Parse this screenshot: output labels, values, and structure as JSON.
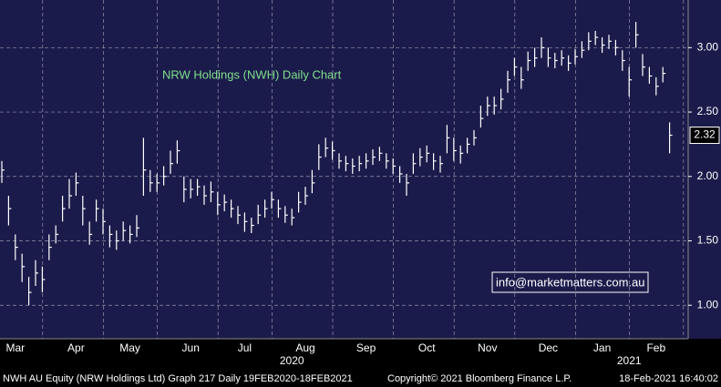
{
  "chart_data": {
    "type": "ohlc",
    "title": "NRW Holdings (NWH) Daily Chart",
    "watermark": "info@marketmatters.com.au",
    "footer_left": "NWH AU Equity (NRW Holdings Ltd) Graph 217  Daily 19FEB2020-18FEB2021",
    "footer_center": "Copyright© 2021 Bloomberg Finance L.P.",
    "footer_right": "18-Feb-2021 16:40:02",
    "color": "#ffffff",
    "grid": true,
    "categories": [
      null,
      null,
      "Mar",
      null,
      null,
      null,
      null,
      null,
      null,
      null,
      null,
      "Apr",
      null,
      null,
      null,
      null,
      null,
      null,
      null,
      "May",
      null,
      null,
      null,
      null,
      null,
      null,
      null,
      null,
      "Jun",
      null,
      null,
      null,
      null,
      null,
      null,
      null,
      "Jul",
      null,
      null,
      null,
      null,
      null,
      null,
      null,
      null,
      "Aug",
      null,
      null,
      null,
      null,
      null,
      null,
      null,
      null,
      "Sep",
      null,
      null,
      null,
      null,
      null,
      null,
      null,
      null,
      "Oct",
      null,
      null,
      null,
      null,
      null,
      null,
      null,
      null,
      "Nov",
      null,
      null,
      null,
      null,
      null,
      null,
      null,
      null,
      "Dec",
      null,
      null,
      null,
      null,
      null,
      null,
      null,
      "Jan",
      null,
      null,
      null,
      null,
      null,
      null,
      null,
      "Feb",
      null,
      null
    ],
    "years": [
      null,
      null,
      null,
      null,
      null,
      null,
      null,
      null,
      null,
      null,
      null,
      null,
      null,
      null,
      null,
      null,
      null,
      null,
      null,
      null,
      null,
      null,
      null,
      null,
      null,
      null,
      null,
      null,
      null,
      null,
      null,
      null,
      null,
      null,
      null,
      null,
      null,
      null,
      null,
      null,
      null,
      null,
      null,
      "2020",
      null,
      null,
      null,
      null,
      null,
      null,
      null,
      null,
      null,
      null,
      null,
      null,
      null,
      null,
      null,
      null,
      null,
      null,
      null,
      null,
      null,
      null,
      null,
      null,
      null,
      null,
      null,
      null,
      null,
      null,
      null,
      null,
      null,
      null,
      null,
      null,
      null,
      null,
      null,
      null,
      null,
      null,
      null,
      null,
      null,
      null,
      null,
      null,
      null,
      "2021",
      null,
      null,
      null,
      null,
      null,
      null
    ],
    "high": [
      2.12,
      1.85,
      1.55,
      1.4,
      1.22,
      1.35,
      1.3,
      1.55,
      1.62,
      1.85,
      1.98,
      2.03,
      1.85,
      1.65,
      1.82,
      1.75,
      1.62,
      1.58,
      1.65,
      1.62,
      1.7,
      2.3,
      2.05,
      2.02,
      2.08,
      2.2,
      2.28,
      2.0,
      1.98,
      1.98,
      1.93,
      1.96,
      1.88,
      1.86,
      1.82,
      1.77,
      1.72,
      1.68,
      1.78,
      1.82,
      1.88,
      1.82,
      1.77,
      1.75,
      1.88,
      1.92,
      2.05,
      2.25,
      2.3,
      2.27,
      2.18,
      2.16,
      2.14,
      2.16,
      2.18,
      2.21,
      2.23,
      2.18,
      2.14,
      2.08,
      2.02,
      2.18,
      2.22,
      2.24,
      2.18,
      2.16,
      2.4,
      2.3,
      2.24,
      2.3,
      2.36,
      2.55,
      2.62,
      2.62,
      2.68,
      2.82,
      2.92,
      2.85,
      2.97,
      3.0,
      3.08,
      3.0,
      2.96,
      2.98,
      2.94,
      2.99,
      3.05,
      3.12,
      3.13,
      3.08,
      3.1,
      3.06,
      2.98,
      2.85,
      3.2,
      2.95,
      2.85,
      2.77,
      2.85,
      2.42
    ],
    "low": [
      1.95,
      1.62,
      1.35,
      1.18,
      1.0,
      1.15,
      1.1,
      1.35,
      1.48,
      1.65,
      1.75,
      1.85,
      1.62,
      1.47,
      1.65,
      1.55,
      1.45,
      1.43,
      1.5,
      1.48,
      1.53,
      1.85,
      1.88,
      1.88,
      1.93,
      2.02,
      2.1,
      1.8,
      1.83,
      1.85,
      1.78,
      1.8,
      1.7,
      1.73,
      1.68,
      1.63,
      1.57,
      1.56,
      1.63,
      1.68,
      1.75,
      1.68,
      1.64,
      1.62,
      1.72,
      1.78,
      1.87,
      2.05,
      2.15,
      2.13,
      2.06,
      2.04,
      2.02,
      2.04,
      2.06,
      2.09,
      2.12,
      2.06,
      2.02,
      1.95,
      1.85,
      2.02,
      2.08,
      2.11,
      2.05,
      2.03,
      2.18,
      2.12,
      2.1,
      2.18,
      2.24,
      2.38,
      2.47,
      2.48,
      2.52,
      2.65,
      2.78,
      2.68,
      2.82,
      2.85,
      2.92,
      2.85,
      2.84,
      2.86,
      2.82,
      2.87,
      2.92,
      2.98,
      3.02,
      2.96,
      2.99,
      2.94,
      2.82,
      2.62,
      3.0,
      2.78,
      2.72,
      2.63,
      2.73,
      2.18
    ],
    "close": [
      2.05,
      1.75,
      1.45,
      1.3,
      1.1,
      1.25,
      1.2,
      1.45,
      1.55,
      1.75,
      1.85,
      1.95,
      1.75,
      1.55,
      1.75,
      1.65,
      1.55,
      1.5,
      1.58,
      1.55,
      1.6,
      2.05,
      1.95,
      1.95,
      2.0,
      2.1,
      2.2,
      1.9,
      1.9,
      1.92,
      1.85,
      1.88,
      1.78,
      1.8,
      1.75,
      1.7,
      1.65,
      1.62,
      1.7,
      1.75,
      1.82,
      1.75,
      1.7,
      1.68,
      1.8,
      1.85,
      1.95,
      2.15,
      2.22,
      2.2,
      2.12,
      2.1,
      2.08,
      2.1,
      2.12,
      2.15,
      2.18,
      2.12,
      2.08,
      2.02,
      1.95,
      2.1,
      2.15,
      2.18,
      2.12,
      2.1,
      2.3,
      2.2,
      2.18,
      2.25,
      2.3,
      2.45,
      2.55,
      2.55,
      2.6,
      2.75,
      2.85,
      2.75,
      2.9,
      2.92,
      3.0,
      2.92,
      2.9,
      2.92,
      2.88,
      2.93,
      2.98,
      3.05,
      3.08,
      3.02,
      3.05,
      3.0,
      2.9,
      2.75,
      3.1,
      2.85,
      2.78,
      2.7,
      2.8,
      2.32
    ],
    "last_price": 2.32,
    "ylim": [
      0.74,
      3.37
    ],
    "yticks": [
      {
        "value": 1,
        "label": "1.00"
      },
      {
        "value": 1.5,
        "label": "1.50"
      },
      {
        "value": 2,
        "label": "2.00"
      },
      {
        "value": 2.5,
        "label": "2.50"
      },
      {
        "value": 3,
        "label": "3.00"
      }
    ]
  }
}
